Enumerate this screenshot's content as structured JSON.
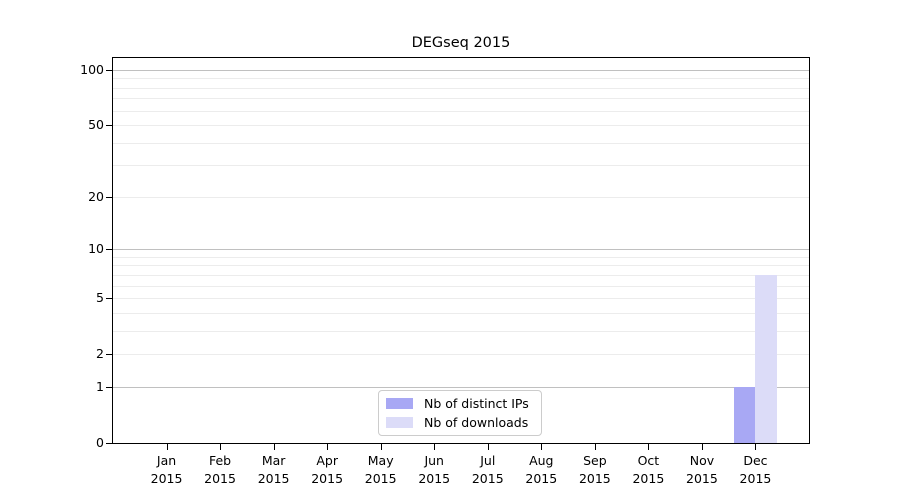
{
  "chart_data": {
    "type": "bar",
    "title": "DEGseq 2015",
    "categories": [
      {
        "month": "Jan",
        "year": "2015"
      },
      {
        "month": "Feb",
        "year": "2015"
      },
      {
        "month": "Mar",
        "year": "2015"
      },
      {
        "month": "Apr",
        "year": "2015"
      },
      {
        "month": "May",
        "year": "2015"
      },
      {
        "month": "Jun",
        "year": "2015"
      },
      {
        "month": "Jul",
        "year": "2015"
      },
      {
        "month": "Aug",
        "year": "2015"
      },
      {
        "month": "Sep",
        "year": "2015"
      },
      {
        "month": "Oct",
        "year": "2015"
      },
      {
        "month": "Nov",
        "year": "2015"
      },
      {
        "month": "Dec",
        "year": "2015"
      }
    ],
    "series": [
      {
        "name": "Nb of distinct IPs",
        "color": "#a8a8f4",
        "values": [
          0,
          0,
          0,
          0,
          0,
          0,
          0,
          0,
          0,
          0,
          0,
          1
        ]
      },
      {
        "name": "Nb of downloads",
        "color": "#dcdcf8",
        "values": [
          0,
          0,
          0,
          0,
          0,
          0,
          0,
          0,
          0,
          0,
          0,
          7
        ]
      }
    ],
    "xlabel": "",
    "ylabel": "",
    "y_axis": {
      "scale": "log1p",
      "ylim": [
        0,
        116
      ],
      "ticks": [
        0,
        1,
        2,
        5,
        10,
        20,
        50,
        100
      ],
      "major_gridlines": [
        1,
        10,
        100
      ],
      "minor_gridlines": [
        2,
        3,
        4,
        5,
        6,
        7,
        8,
        9,
        20,
        30,
        40,
        50,
        60,
        70,
        80,
        90
      ],
      "grid": "on"
    },
    "legend_position": "lower center"
  },
  "style": {
    "background_color": "#ffffff",
    "spine_color": "#000000",
    "text_color": "#000000",
    "major_grid_color": "#c0c0c0",
    "minor_grid_color": "#ececec",
    "legend_border_color": "#cccccc"
  }
}
